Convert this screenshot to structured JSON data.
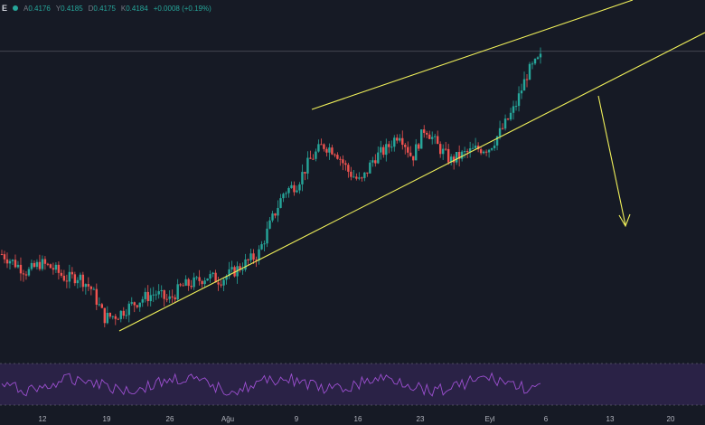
{
  "legend": {
    "symbol": "E",
    "open_label": "A",
    "open": "0.4176",
    "high_label": "Y",
    "high": "0.4185",
    "low_label": "D",
    "low": "0.4175",
    "close_label": "K",
    "close": "0.4184",
    "change": "+0.0008 (+0.19%)"
  },
  "colors": {
    "background": "#161a25",
    "up": "#26a69a",
    "down": "#ef5350",
    "trendline": "#f0f05a",
    "rsi_line": "#9c4fd0",
    "rsi_band": "#3d2a62",
    "price_line": "#434651"
  },
  "x_axis": {
    "labels": [
      "12",
      "19",
      "26",
      "Ağu",
      "9",
      "16",
      "23",
      "Eyl",
      "6",
      "13",
      "20"
    ]
  },
  "chart_data": {
    "type": "candlestick",
    "price_series": [
      0.262,
      0.255,
      0.248,
      0.255,
      0.251,
      0.243,
      0.245,
      0.235,
      0.213,
      0.215,
      0.222,
      0.228,
      0.232,
      0.226,
      0.237,
      0.24,
      0.245,
      0.242,
      0.248,
      0.255,
      0.262,
      0.287,
      0.31,
      0.316,
      0.334,
      0.346,
      0.342,
      0.326,
      0.317,
      0.336,
      0.343,
      0.356,
      0.336,
      0.36,
      0.345,
      0.334,
      0.339,
      0.343,
      0.344,
      0.358,
      0.375,
      0.402,
      0.413
    ],
    "last_close": 0.4184,
    "annotations": [
      "rising wedge upper trendline",
      "rising wedge lower trendline",
      "projected breakdown arrow"
    ],
    "indicator": "RSI"
  }
}
